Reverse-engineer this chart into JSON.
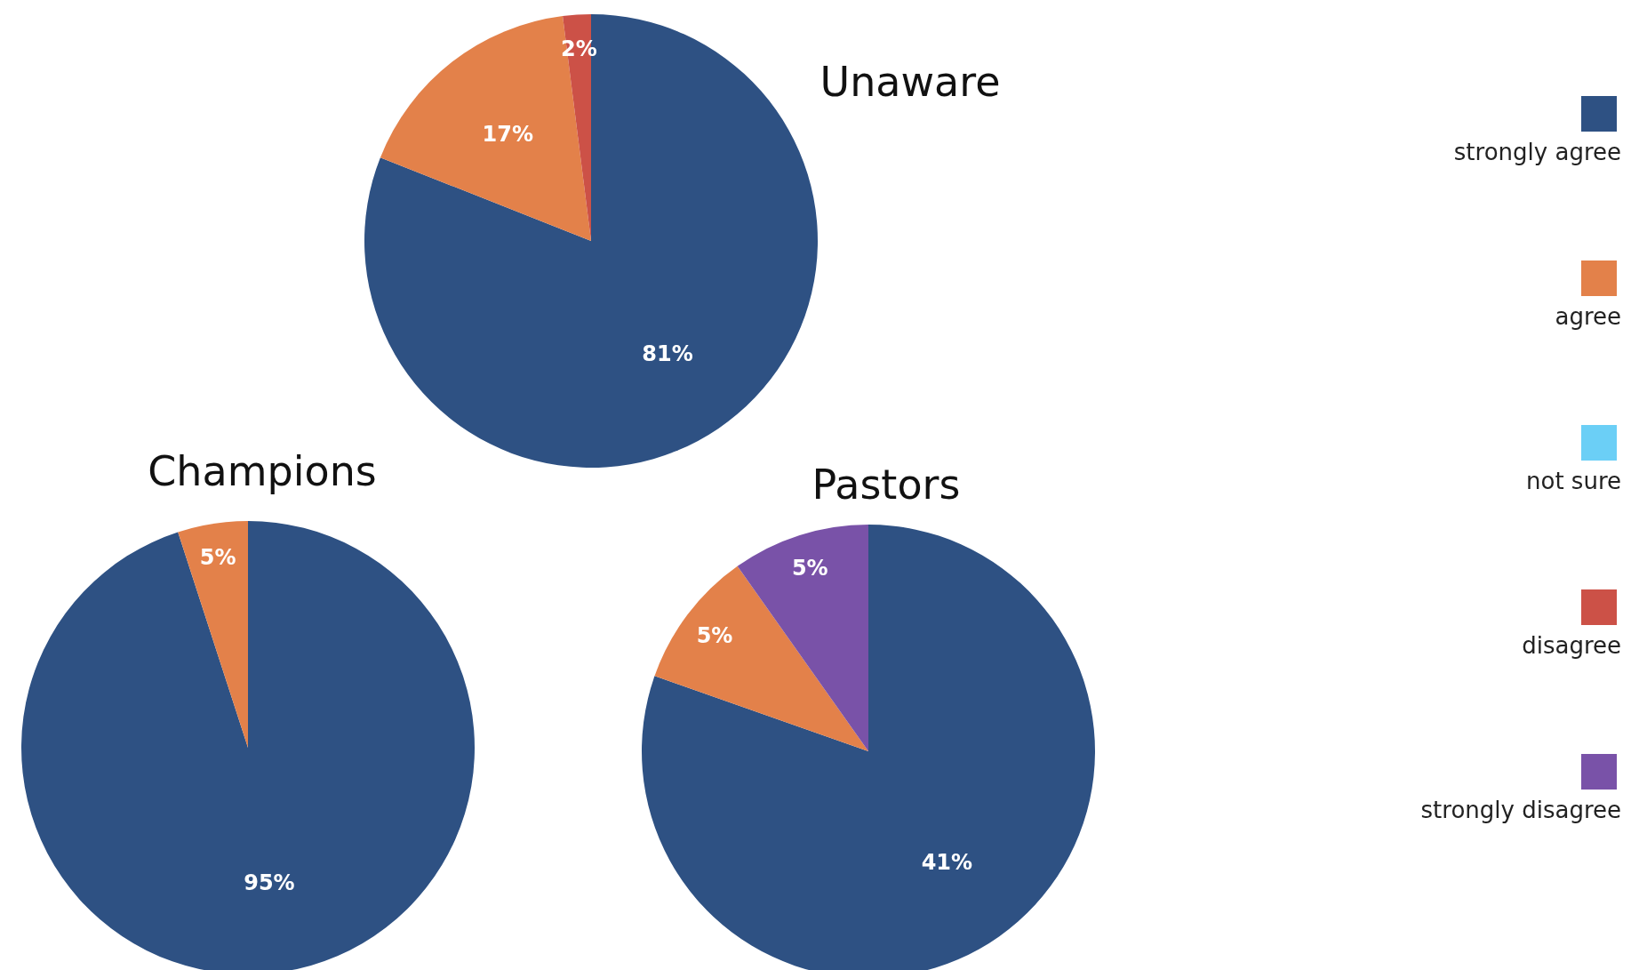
{
  "chart_data": [
    {
      "type": "pie",
      "title": "Unaware",
      "categories": [
        null,
        null,
        null
      ],
      "values": [
        81,
        17,
        2
      ],
      "colors": [
        "#2e5183",
        "#e3814a",
        "#cc5147"
      ],
      "value_labels": [
        "81%",
        "17%",
        "2%"
      ]
    },
    {
      "type": "pie",
      "title": "Champions",
      "categories": [
        null,
        null
      ],
      "values": [
        95,
        5
      ],
      "colors": [
        "#2e5183",
        "#e3814a"
      ],
      "value_labels": [
        "95%",
        "5%"
      ]
    },
    {
      "type": "pie",
      "title": "Pastors",
      "categories": [
        "strongly agree",
        "agree",
        "not sure",
        "disagree",
        "strongly disagree"
      ],
      "values": [
        41,
        5,
        0,
        0,
        5
      ],
      "colors": [
        "#2e5183",
        "#e3814a",
        "#6bcff6",
        "#cc5147",
        "#7952a8"
      ],
      "value_labels": [
        "41%",
        "5%",
        null,
        null,
        "5%"
      ],
      "legend": "right"
    }
  ]
}
